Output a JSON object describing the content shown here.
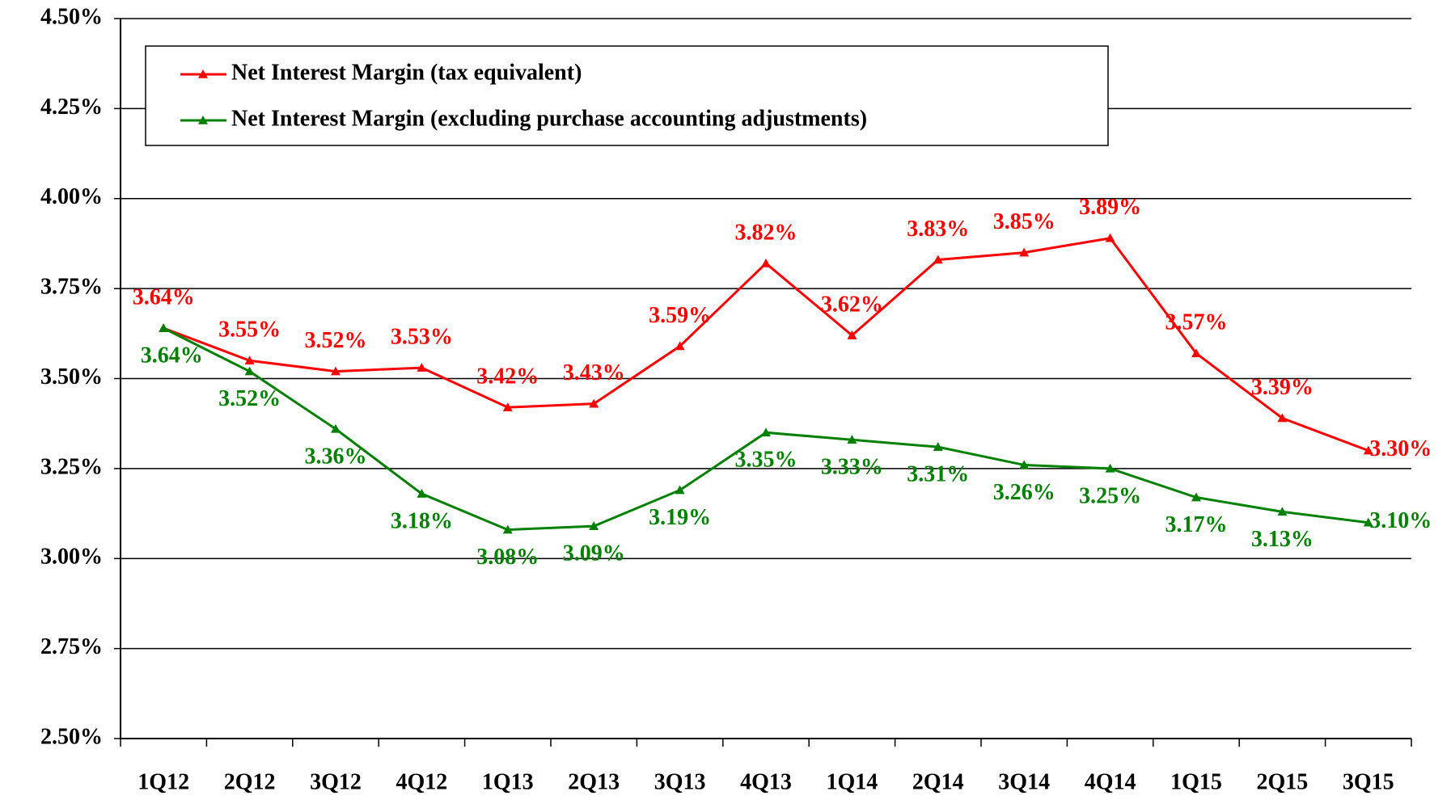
{
  "chart_data": {
    "type": "line",
    "categories": [
      "1Q12",
      "2Q12",
      "3Q12",
      "4Q12",
      "1Q13",
      "2Q13",
      "3Q13",
      "4Q13",
      "1Q14",
      "2Q14",
      "3Q14",
      "4Q14",
      "1Q15",
      "2Q15",
      "3Q15"
    ],
    "series": [
      {
        "name": "Net Interest Margin (tax equivalent)",
        "color": "#ff0000",
        "values": [
          3.64,
          3.55,
          3.52,
          3.53,
          3.42,
          3.43,
          3.59,
          3.82,
          3.62,
          3.83,
          3.85,
          3.89,
          3.57,
          3.39,
          3.3
        ],
        "value_labels": [
          "3.64%",
          "3.55%",
          "3.52%",
          "3.53%",
          "3.42%",
          "3.43%",
          "3.59%",
          "3.82%",
          "3.62%",
          "3.83%",
          "3.85%",
          "3.89%",
          "3.57%",
          "3.39%",
          "3.30%"
        ]
      },
      {
        "name": "Net Interest Margin (excluding purchase accounting adjustments)",
        "color": "#008000",
        "values": [
          3.64,
          3.52,
          3.36,
          3.18,
          3.08,
          3.09,
          3.19,
          3.35,
          3.33,
          3.31,
          3.26,
          3.25,
          3.17,
          3.13,
          3.1
        ],
        "value_labels": [
          "3.64%",
          "3.52%",
          "3.36%",
          "3.18%",
          "3.08%",
          "3.09%",
          "3.19%",
          "3.35%",
          "3.33%",
          "3.31%",
          "3.26%",
          "3.25%",
          "3.17%",
          "3.13%",
          "3.10%"
        ]
      }
    ],
    "ylim": [
      2.5,
      4.5
    ],
    "yticks": [
      {
        "value": 2.5,
        "label": "2.50%"
      },
      {
        "value": 2.75,
        "label": "2.75%"
      },
      {
        "value": 3,
        "label": "3.00%"
      },
      {
        "value": 3.25,
        "label": "3.25%"
      },
      {
        "value": 3.5,
        "label": "3.50%"
      },
      {
        "value": 3.75,
        "label": "3.75%"
      },
      {
        "value": 4,
        "label": "4.00%"
      },
      {
        "value": 4.25,
        "label": "4.25%"
      },
      {
        "value": 4.5,
        "label": "4.50%"
      }
    ],
    "grid": true,
    "legend": "top-left"
  }
}
